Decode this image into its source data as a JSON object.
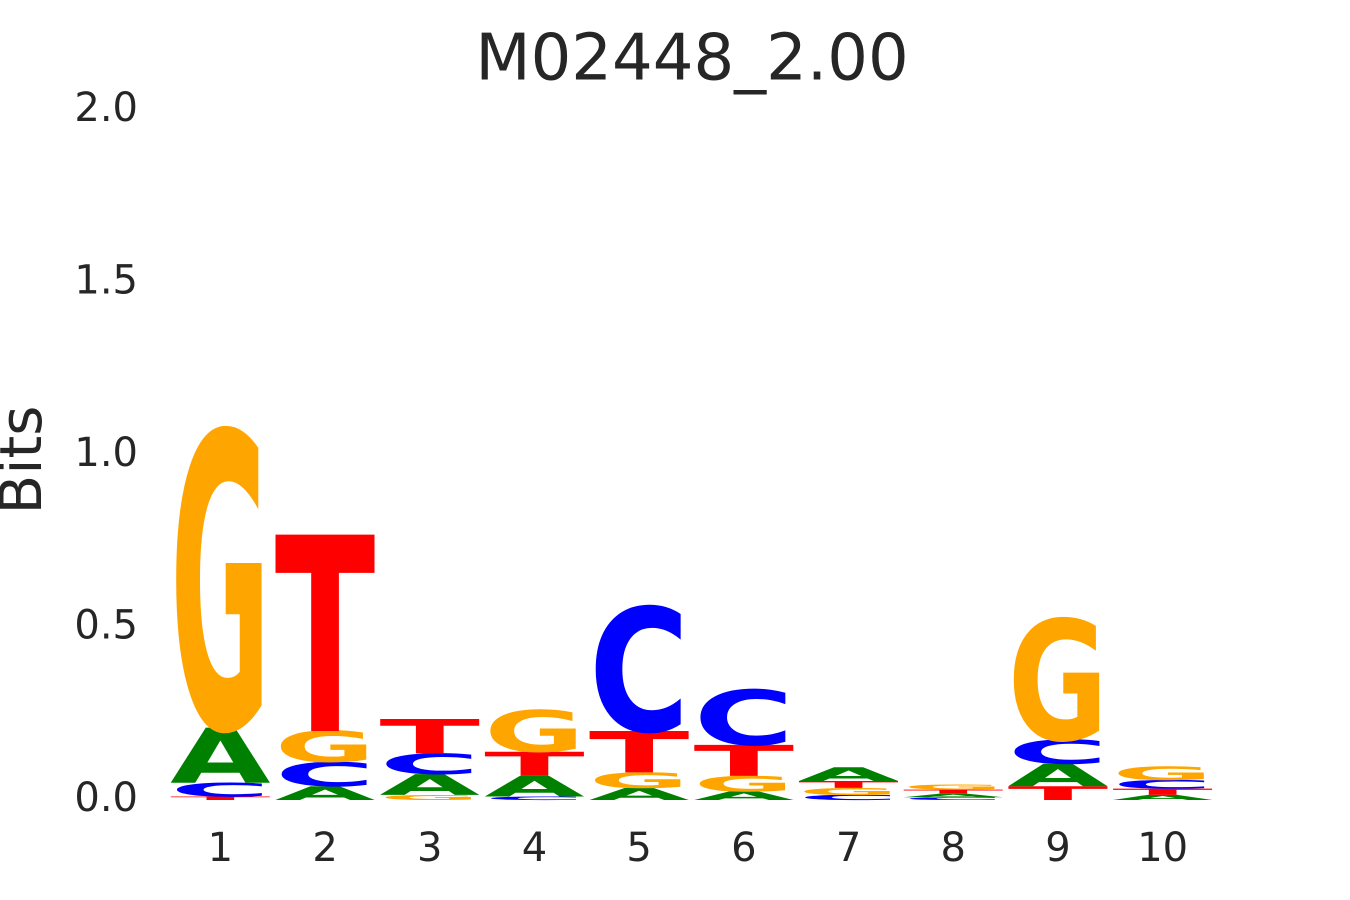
{
  "chart_data": {
    "type": "logo",
    "title": "M02448_2.00",
    "ylabel": "Bits",
    "categories": [
      "1",
      "2",
      "3",
      "4",
      "5",
      "6",
      "7",
      "8",
      "9",
      "10"
    ],
    "series": [
      {
        "name": "A",
        "color": "#008000",
        "values": [
          0.16,
          0.04,
          0.06,
          0.06,
          0.035,
          0.025,
          0.04,
          0.01,
          0.065,
          0.015
        ]
      },
      {
        "name": "C",
        "color": "#0000ff",
        "values": [
          0.04,
          0.07,
          0.06,
          0.01,
          0.36,
          0.16,
          0.015,
          0.008,
          0.07,
          0.025
        ]
      },
      {
        "name": "G",
        "color": "#ffa500",
        "values": [
          0.86,
          0.09,
          0.015,
          0.12,
          0.045,
          0.045,
          0.02,
          0.015,
          0.35,
          0.04
        ]
      },
      {
        "name": "T",
        "color": "#ff0000",
        "values": [
          0.01,
          0.57,
          0.1,
          0.07,
          0.12,
          0.09,
          0.02,
          0.012,
          0.04,
          0.018
        ]
      }
    ],
    "ylim": [
      0,
      2
    ],
    "yticks": [
      {
        "value": 0,
        "label": "0.0"
      },
      0.5,
      {
        "value": 1,
        "label": "1.0"
      },
      1.5,
      {
        "value": 2,
        "label": "2.0"
      }
    ]
  }
}
